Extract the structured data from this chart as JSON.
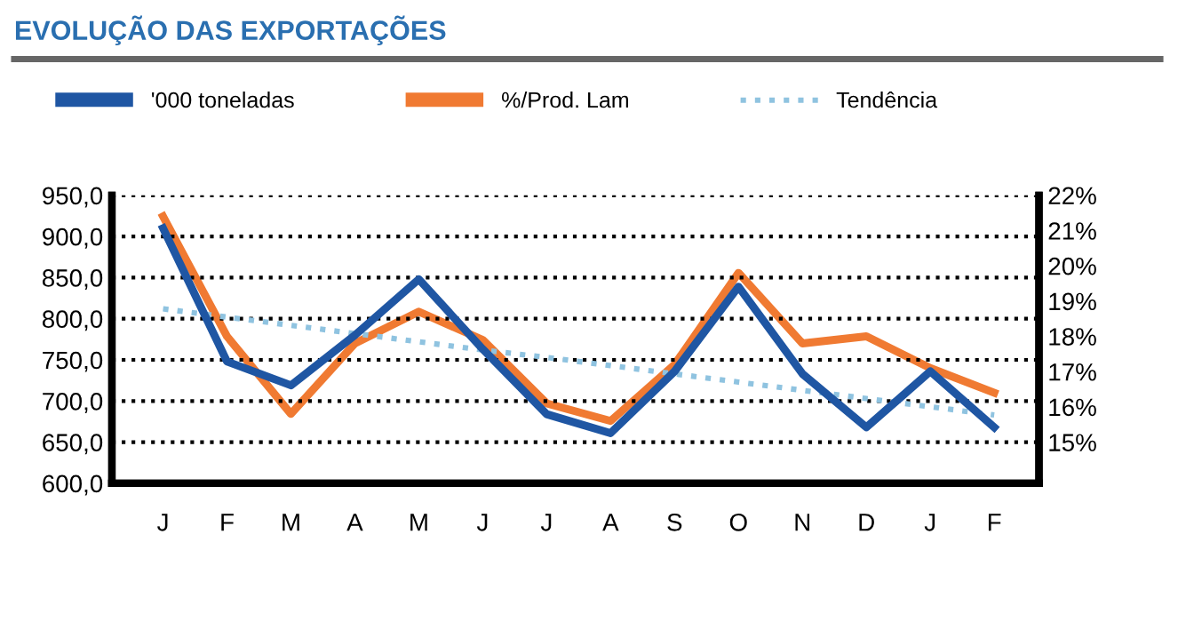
{
  "chart_data": {
    "type": "line",
    "title": "EVOLUÇÃO DAS EXPORTAÇÕES",
    "categories": [
      "J",
      "F",
      "M",
      "A",
      "M",
      "J",
      "J",
      "A",
      "S",
      "O",
      "N",
      "D",
      "J",
      "F"
    ],
    "series": [
      {
        "name": "'000 toneladas",
        "color": "#1f56a3",
        "values": [
          910,
          748,
          719,
          780,
          848,
          763,
          684,
          661,
          736,
          839,
          733,
          668,
          736,
          668
        ]
      },
      {
        "name": "%/Prod. Lam",
        "color": "#f07a32",
        "axis": "y2",
        "values": [
          21.4,
          18.0,
          15.8,
          17.8,
          18.7,
          17.9,
          16.1,
          15.6,
          17.2,
          19.8,
          17.8,
          18.0,
          17.1,
          16.4
        ]
      },
      {
        "name": "Tendência",
        "color": "#8fc3e0",
        "type": "line",
        "line_style": "dotted",
        "values": [
          812,
          802,
          792,
          782,
          772,
          762,
          753,
          743,
          733,
          723,
          713,
          703,
          693,
          683
        ]
      }
    ],
    "ylim": [
      600,
      950
    ],
    "yticks": [
      {
        "value": 600,
        "label": "600,0"
      },
      {
        "value": 650,
        "label": "650,0"
      },
      {
        "value": 700,
        "label": "700,0"
      },
      {
        "value": 750,
        "label": "750,0"
      },
      {
        "value": 800,
        "label": "800,0"
      },
      {
        "value": 850,
        "label": "850,0"
      },
      {
        "value": 900,
        "label": "900,0"
      },
      {
        "value": 950,
        "label": "950,0"
      }
    ],
    "y2lim": [
      13.8333,
      22
    ],
    "y2ticks": [
      {
        "value": 15,
        "label": "15%"
      },
      {
        "value": 16,
        "label": "16%"
      },
      {
        "value": 17,
        "label": "17%"
      },
      {
        "value": 18,
        "label": "18%"
      },
      {
        "value": 19,
        "label": "19%"
      },
      {
        "value": 20,
        "label": "20%"
      },
      {
        "value": 21,
        "label": "21%"
      },
      {
        "value": 22,
        "label": "22%"
      }
    ],
    "grid": "y",
    "legend": "top",
    "marker": "none",
    "line_style": "solid"
  }
}
